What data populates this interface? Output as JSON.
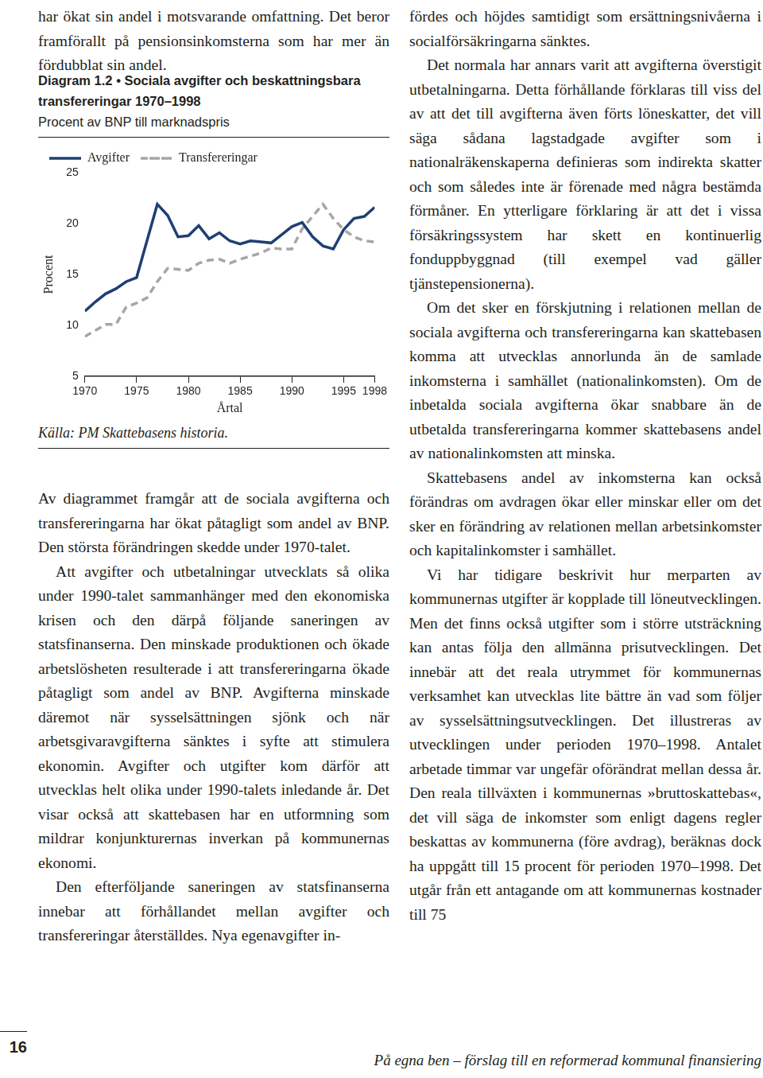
{
  "document": {
    "left_top": {
      "paragraphs": [
        "har ökat sin andel i motsvarande omfattning. Det beror framförallt på pensionsinkomsterna som har mer än fördubblat sin andel."
      ]
    },
    "left_body": {
      "paragraphs": [
        "Av diagrammet framgår att de sociala avgifterna och transfereringarna har ökat påtagligt som andel av BNP. Den största förändringen skedde under 1970-talet.",
        "Att avgifter och utbetalningar utvecklats så olika under 1990-talet sammanhänger med den ekonomiska krisen och den därpå följande saneringen av statsfinanserna. Den minskade produktionen och ökade arbetslösheten resulterade i att transfereringarna ökade påtagligt som andel av BNP. Avgifterna minskade däremot när sysselsättningen sjönk och när arbetsgivaravgifterna sänktes i syfte att stimulera ekonomin. Avgifter och utgifter kom därför att utvecklas helt olika under 1990-talets inledande år. Det visar också att skattebasen har en utformning som mildrar konjunkturernas inverkan på kommunernas ekonomi.",
        "Den efterföljande saneringen av statsfinanserna innebar att förhållandet mellan avgifter och transfereringar återställdes. Nya egenavgifter in-"
      ]
    },
    "right_column": {
      "paragraphs": [
        "fördes och höjdes samtidigt som ersättningsnivåerna i socialförsäkringarna sänktes.",
        "Det normala har annars varit att avgifterna överstigit utbetalningarna. Detta förhållande förklaras till viss del av att det till avgifterna även förts löneskatter, det vill säga sådana lagstadgade avgifter som i nationalräkenskaperna definieras som indirekta skatter och som således inte är förenade med några bestämda förmåner. En ytterligare förklaring är att det i vissa försäkringssystem har skett en kontinuerlig fonduppbyggnad (till exempel vad gäller tjänstepensionerna).",
        "Om det sker en förskjutning i relationen mellan de sociala avgifterna och transfereringarna kan skattebasen komma att utvecklas annorlunda än de samlade inkomsterna i samhället (nationalinkomsten). Om de inbetalda sociala avgifterna ökar snabbare än de utbetalda transfereringarna kommer skattebasens andel av nationalinkomsten att minska.",
        "Skattebasens andel av inkomsterna kan också förändras om avdragen ökar eller minskar eller om det sker en förändring av relationen mellan arbetsinkomster och kapitalinkomster i samhället.",
        "Vi har tidigare beskrivit hur merparten av kommunernas utgifter är kopplade till löneutvecklingen. Men det finns också utgifter som i större utsträckning kan antas följa den allmänna prisutvecklingen. Det innebär att det reala utrymmet för kommunernas verksamhet kan utvecklas lite bättre än vad som följer av sysselsättningsutvecklingen. Det illustreras av utvecklingen under perioden 1970–1998. Antalet arbetade timmar var ungefär oförändrat mellan dessa år. Den reala tillväxten i kommunernas »bruttoskattebas«, det vill säga de inkomster som enligt dagens regler beskattas av kommunerna (före avdrag), beräknas dock ha uppgått till 15 procent för perioden 1970–1998. Det utgår från ett antagande om att kommunernas kostnader till 75"
      ]
    },
    "footer": {
      "page_number": "16",
      "title": "På egna ben – förslag till en reformerad kommunal finansiering"
    }
  },
  "chart_data": {
    "type": "line",
    "title": "Diagram 1.2 • Sociala avgifter och beskattningsbara transfereringar 1970–1998",
    "subtitle": "Procent av BNP till marknadspris",
    "source": "Källa: PM Skattebasens historia.",
    "x_label": "Årtal",
    "y_label": "Procent",
    "x": [
      1970,
      1971,
      1972,
      1973,
      1974,
      1975,
      1976,
      1977,
      1978,
      1979,
      1980,
      1981,
      1982,
      1983,
      1984,
      1985,
      1986,
      1987,
      1988,
      1989,
      1990,
      1991,
      1992,
      1993,
      1994,
      1995,
      1996,
      1997,
      1998
    ],
    "series": [
      {
        "name": "Avgifter",
        "color": "#1f3f73",
        "line_style": "solid",
        "marker": "none",
        "values": [
          11.4,
          12.3,
          13.1,
          13.6,
          14.3,
          14.7,
          18.3,
          21.9,
          20.8,
          18.7,
          18.8,
          19.8,
          18.5,
          19.1,
          18.3,
          18.0,
          18.3,
          18.2,
          18.1,
          18.9,
          19.7,
          20.1,
          18.7,
          17.8,
          17.5,
          19.4,
          20.5,
          20.7,
          21.6
        ]
      },
      {
        "name": "Transfereringar",
        "color": "#a6a6a6",
        "line_style": "dashed",
        "marker": "none",
        "values": [
          8.9,
          9.5,
          10.1,
          10.1,
          11.8,
          12.2,
          12.7,
          14.3,
          15.6,
          15.5,
          15.4,
          16.1,
          16.4,
          16.5,
          16.1,
          16.5,
          16.8,
          17.1,
          17.6,
          17.5,
          17.5,
          19.5,
          20.7,
          21.9,
          20.5,
          19.4,
          18.7,
          18.3,
          18.2
        ]
      }
    ],
    "xlim": [
      1970,
      1998
    ],
    "xticks": [
      1970,
      1975,
      1980,
      1985,
      1990,
      1995,
      1998
    ],
    "ylim": [
      5,
      25
    ],
    "yticks": [
      5,
      10,
      15,
      20,
      25
    ],
    "grid": false,
    "legend": "top left"
  }
}
